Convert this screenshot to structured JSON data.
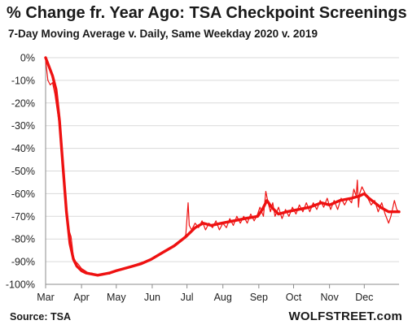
{
  "header": {
    "title": "% Change fr. Year Ago: TSA Checkpoint Screenings",
    "subtitle": "7-Day Moving Average v. Daily, Same Weekday 2020 v. 2019"
  },
  "footer": {
    "source": "Source: TSA",
    "brand": "WOLFSTREET.com"
  },
  "colors": {
    "series": "#ee1111",
    "grid": "#d9d9d9",
    "axis": "#8c8c8c"
  },
  "chart_data": {
    "type": "line",
    "title": "% Change fr. Year Ago: TSA Checkpoint Screenings",
    "subtitle": "7-Day Moving Average v. Daily, Same Weekday 2020 v. 2019",
    "xlabel": "",
    "ylabel": "",
    "grid": true,
    "legend": "none",
    "x_unit": "2020 date (month-day)",
    "xlim": [
      "03-01",
      "12-31"
    ],
    "ylim": [
      -100,
      0
    ],
    "y_ticks": [
      0,
      -10,
      -20,
      -30,
      -40,
      -50,
      -60,
      -70,
      -80,
      -90,
      -100
    ],
    "y_tick_labels": [
      "0%",
      "-10%",
      "-20%",
      "-30%",
      "-40%",
      "-50%",
      "-60%",
      "-70%",
      "-80%",
      "-90%",
      "-100%"
    ],
    "x_ticks": [
      "03-01",
      "04-01",
      "05-01",
      "06-01",
      "07-01",
      "08-01",
      "09-01",
      "10-01",
      "11-01",
      "12-01"
    ],
    "x_tick_labels": [
      "Mar",
      "Apr",
      "May",
      "Jun",
      "Jul",
      "Aug",
      "Sep",
      "Oct",
      "Nov",
      "Dec"
    ],
    "series": [
      {
        "role": "7-day moving average",
        "stroke": "thick",
        "points": [
          [
            "03-01",
            0
          ],
          [
            "03-04",
            -4
          ],
          [
            "03-07",
            -8
          ],
          [
            "03-10",
            -14
          ],
          [
            "03-13",
            -28
          ],
          [
            "03-16",
            -48
          ],
          [
            "03-19",
            -68
          ],
          [
            "03-22",
            -82
          ],
          [
            "03-25",
            -89
          ],
          [
            "03-28",
            -92
          ],
          [
            "04-01",
            -94
          ],
          [
            "04-05",
            -95
          ],
          [
            "04-10",
            -95.5
          ],
          [
            "04-15",
            -96
          ],
          [
            "04-20",
            -95.5
          ],
          [
            "04-25",
            -95
          ],
          [
            "05-01",
            -94
          ],
          [
            "05-08",
            -93
          ],
          [
            "05-15",
            -92
          ],
          [
            "05-22",
            -91
          ],
          [
            "05-31",
            -89
          ],
          [
            "06-10",
            -86
          ],
          [
            "06-20",
            -83
          ],
          [
            "06-30",
            -79
          ],
          [
            "07-08",
            -75
          ],
          [
            "07-15",
            -73
          ],
          [
            "07-22",
            -74
          ],
          [
            "07-31",
            -73
          ],
          [
            "08-10",
            -72
          ],
          [
            "08-20",
            -71
          ],
          [
            "08-31",
            -70
          ],
          [
            "09-04",
            -67
          ],
          [
            "09-08",
            -63
          ],
          [
            "09-12",
            -66
          ],
          [
            "09-18",
            -69
          ],
          [
            "09-25",
            -68
          ],
          [
            "10-05",
            -67
          ],
          [
            "10-15",
            -66
          ],
          [
            "10-25",
            -64
          ],
          [
            "11-01",
            -65
          ],
          [
            "11-10",
            -63
          ],
          [
            "11-20",
            -62
          ],
          [
            "11-27",
            -61
          ],
          [
            "12-01",
            -60
          ],
          [
            "12-05",
            -62
          ],
          [
            "12-10",
            -64
          ],
          [
            "12-15",
            -66
          ],
          [
            "12-22",
            -68
          ],
          [
            "12-31",
            -68
          ]
        ]
      },
      {
        "role": "daily",
        "stroke": "thin",
        "points": [
          [
            "03-01",
            -1
          ],
          [
            "03-03",
            -10
          ],
          [
            "03-05",
            -12
          ],
          [
            "03-07",
            -11
          ],
          [
            "03-09",
            -16
          ],
          [
            "03-11",
            -23
          ],
          [
            "03-13",
            -30
          ],
          [
            "03-15",
            -38
          ],
          [
            "03-17",
            -53
          ],
          [
            "03-19",
            -70
          ],
          [
            "03-21",
            -76
          ],
          [
            "03-23",
            -79
          ],
          [
            "03-25",
            -88
          ],
          [
            "03-27",
            -90
          ],
          [
            "03-29",
            -91
          ],
          [
            "04-01",
            -93
          ],
          [
            "04-04",
            -94
          ],
          [
            "04-07",
            -95
          ],
          [
            "04-10",
            -95
          ],
          [
            "04-13",
            -96
          ],
          [
            "04-16",
            -95.5
          ],
          [
            "04-19",
            -96
          ],
          [
            "04-22",
            -95
          ],
          [
            "04-25",
            -95.5
          ],
          [
            "04-28",
            -94.5
          ],
          [
            "05-01",
            -94
          ],
          [
            "05-04",
            -93.5
          ],
          [
            "05-07",
            -93
          ],
          [
            "05-10",
            -92.5
          ],
          [
            "05-13",
            -92
          ],
          [
            "05-16",
            -91.5
          ],
          [
            "05-19",
            -91
          ],
          [
            "05-22",
            -90.5
          ],
          [
            "05-25",
            -90
          ],
          [
            "05-28",
            -89.5
          ],
          [
            "06-01",
            -88.5
          ],
          [
            "06-05",
            -87.5
          ],
          [
            "06-09",
            -86
          ],
          [
            "06-13",
            -85
          ],
          [
            "06-17",
            -84
          ],
          [
            "06-21",
            -82.5
          ],
          [
            "06-25",
            -81
          ],
          [
            "06-28",
            -80
          ],
          [
            "06-30",
            -78
          ],
          [
            "07-02",
            -64
          ],
          [
            "07-03",
            -74
          ],
          [
            "07-05",
            -76
          ],
          [
            "07-08",
            -73
          ],
          [
            "07-11",
            -75
          ],
          [
            "07-14",
            -72
          ],
          [
            "07-17",
            -76
          ],
          [
            "07-20",
            -73
          ],
          [
            "07-23",
            -75
          ],
          [
            "07-26",
            -72
          ],
          [
            "07-29",
            -76
          ],
          [
            "08-01",
            -73
          ],
          [
            "08-04",
            -75
          ],
          [
            "08-07",
            -71
          ],
          [
            "08-10",
            -74
          ],
          [
            "08-13",
            -70
          ],
          [
            "08-16",
            -73
          ],
          [
            "08-19",
            -70
          ],
          [
            "08-22",
            -73
          ],
          [
            "08-25",
            -69
          ],
          [
            "08-28",
            -72
          ],
          [
            "08-31",
            -69
          ],
          [
            "09-02",
            -66
          ],
          [
            "09-05",
            -70
          ],
          [
            "09-07",
            -59
          ],
          [
            "09-09",
            -64
          ],
          [
            "09-11",
            -68
          ],
          [
            "09-13",
            -64
          ],
          [
            "09-15",
            -70
          ],
          [
            "09-18",
            -66
          ],
          [
            "09-21",
            -71
          ],
          [
            "09-24",
            -67
          ],
          [
            "09-27",
            -70
          ],
          [
            "09-30",
            -66
          ],
          [
            "10-03",
            -69
          ],
          [
            "10-06",
            -65
          ],
          [
            "10-09",
            -68
          ],
          [
            "10-12",
            -64
          ],
          [
            "10-15",
            -68
          ],
          [
            "10-18",
            -64
          ],
          [
            "10-21",
            -67
          ],
          [
            "10-24",
            -63
          ],
          [
            "10-27",
            -66
          ],
          [
            "10-30",
            -62
          ],
          [
            "11-02",
            -67
          ],
          [
            "11-05",
            -63
          ],
          [
            "11-08",
            -67
          ],
          [
            "11-11",
            -62
          ],
          [
            "11-14",
            -65
          ],
          [
            "11-17",
            -62
          ],
          [
            "11-20",
            -64
          ],
          [
            "11-22",
            -58
          ],
          [
            "11-24",
            -61
          ],
          [
            "11-25",
            -54
          ],
          [
            "11-26",
            -66
          ],
          [
            "11-27",
            -60
          ],
          [
            "11-29",
            -57
          ],
          [
            "12-01",
            -59
          ],
          [
            "12-04",
            -62
          ],
          [
            "12-07",
            -65
          ],
          [
            "12-10",
            -63
          ],
          [
            "12-13",
            -68
          ],
          [
            "12-16",
            -64
          ],
          [
            "12-19",
            -69
          ],
          [
            "12-22",
            -73
          ],
          [
            "12-24",
            -70
          ],
          [
            "12-27",
            -63
          ],
          [
            "12-29",
            -67
          ],
          [
            "12-31",
            -68
          ]
        ]
      }
    ]
  }
}
